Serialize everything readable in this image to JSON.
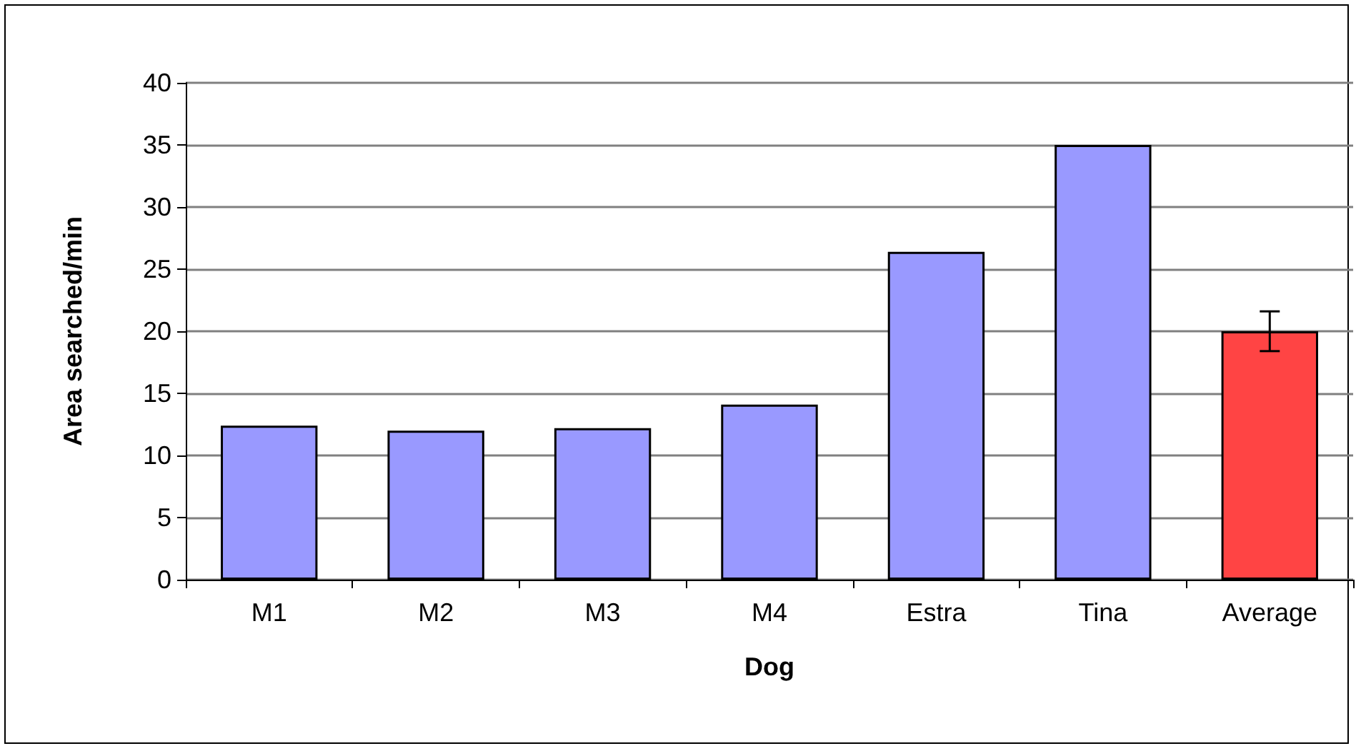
{
  "chart_data": {
    "type": "bar",
    "xlabel": "Dog",
    "ylabel": "Area searched/min",
    "categories": [
      "M1",
      "M2",
      "M3",
      "M4",
      "Estra",
      "Tina",
      "Average"
    ],
    "values": [
      12.4,
      12.0,
      12.2,
      14.1,
      26.4,
      35.0,
      20.0
    ],
    "colors": [
      "#9999ff",
      "#9999ff",
      "#9999ff",
      "#9999ff",
      "#9999ff",
      "#9999ff",
      "#ff4444"
    ],
    "errors": [
      null,
      null,
      null,
      null,
      null,
      null,
      1.6
    ],
    "ylim": [
      0,
      40
    ],
    "yticks": [
      0,
      5,
      10,
      15,
      20,
      25,
      30,
      35,
      40
    ],
    "grid": "y"
  }
}
